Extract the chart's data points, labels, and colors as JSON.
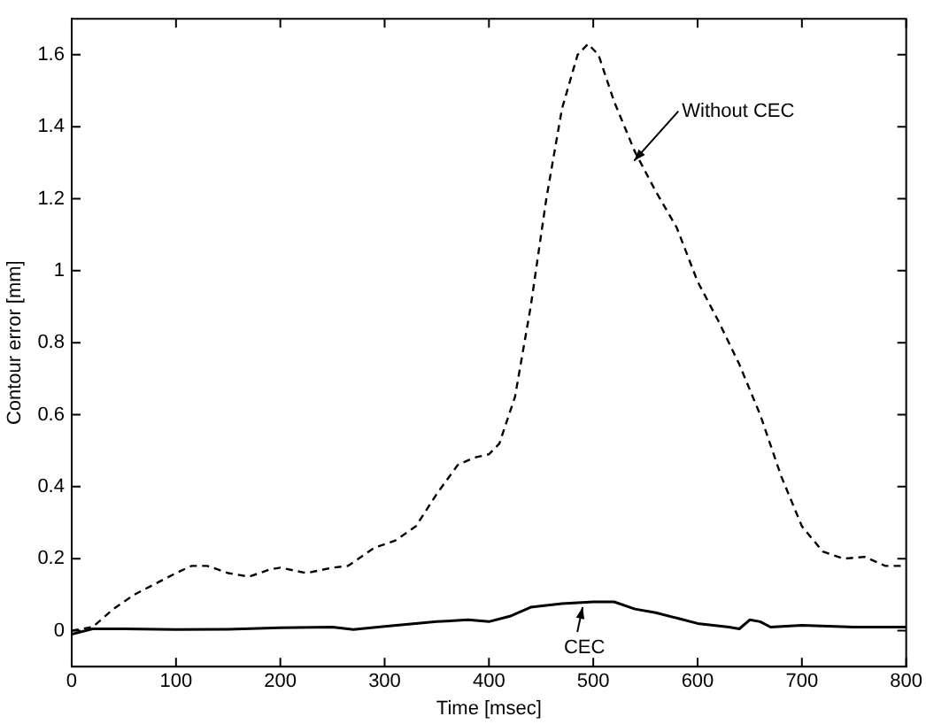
{
  "chart_data": {
    "type": "line",
    "xlabel": "Time [msec]",
    "ylabel": "Contour error [mm]",
    "xlim": [
      0,
      800
    ],
    "xticks": [
      0,
      100,
      200,
      300,
      400,
      500,
      600,
      700,
      800
    ],
    "ylim": [
      -0.1,
      1.7
    ],
    "yticks": [
      0,
      0.2,
      0.4,
      0.6,
      0.8,
      1,
      1.2,
      1.4,
      1.6
    ],
    "series": [
      {
        "name": "Without CEC",
        "color": "#000000",
        "line_style": "dashed",
        "x": [
          0,
          20,
          40,
          60,
          80,
          100,
          115,
          130,
          150,
          170,
          190,
          200,
          225,
          250,
          265,
          290,
          310,
          330,
          350,
          370,
          385,
          400,
          410,
          425,
          440,
          455,
          470,
          485,
          495,
          505,
          520,
          540,
          560,
          580,
          600,
          620,
          640,
          660,
          680,
          700,
          720,
          740,
          760,
          780,
          800
        ],
        "values": [
          0,
          0.01,
          0.06,
          0.1,
          0.13,
          0.16,
          0.18,
          0.18,
          0.16,
          0.15,
          0.17,
          0.175,
          0.16,
          0.175,
          0.18,
          0.23,
          0.25,
          0.29,
          0.38,
          0.46,
          0.48,
          0.49,
          0.52,
          0.65,
          0.9,
          1.2,
          1.45,
          1.6,
          1.63,
          1.6,
          1.47,
          1.33,
          1.22,
          1.12,
          0.97,
          0.86,
          0.74,
          0.6,
          0.43,
          0.29,
          0.22,
          0.2,
          0.205,
          0.18,
          0.18
        ]
      },
      {
        "name": "CEC",
        "color": "#000000",
        "line_style": "solid",
        "x": [
          0,
          20,
          50,
          100,
          150,
          200,
          250,
          270,
          300,
          350,
          380,
          400,
          420,
          440,
          470,
          500,
          520,
          540,
          560,
          580,
          600,
          630,
          640,
          650,
          660,
          670,
          700,
          750,
          800
        ],
        "values": [
          -0.01,
          0.005,
          0.005,
          0.003,
          0.004,
          0.008,
          0.01,
          0.003,
          0.012,
          0.025,
          0.03,
          0.025,
          0.04,
          0.065,
          0.075,
          0.08,
          0.08,
          0.06,
          0.05,
          0.035,
          0.02,
          0.01,
          0.005,
          0.03,
          0.025,
          0.01,
          0.015,
          0.01,
          0.01
        ]
      }
    ]
  }
}
